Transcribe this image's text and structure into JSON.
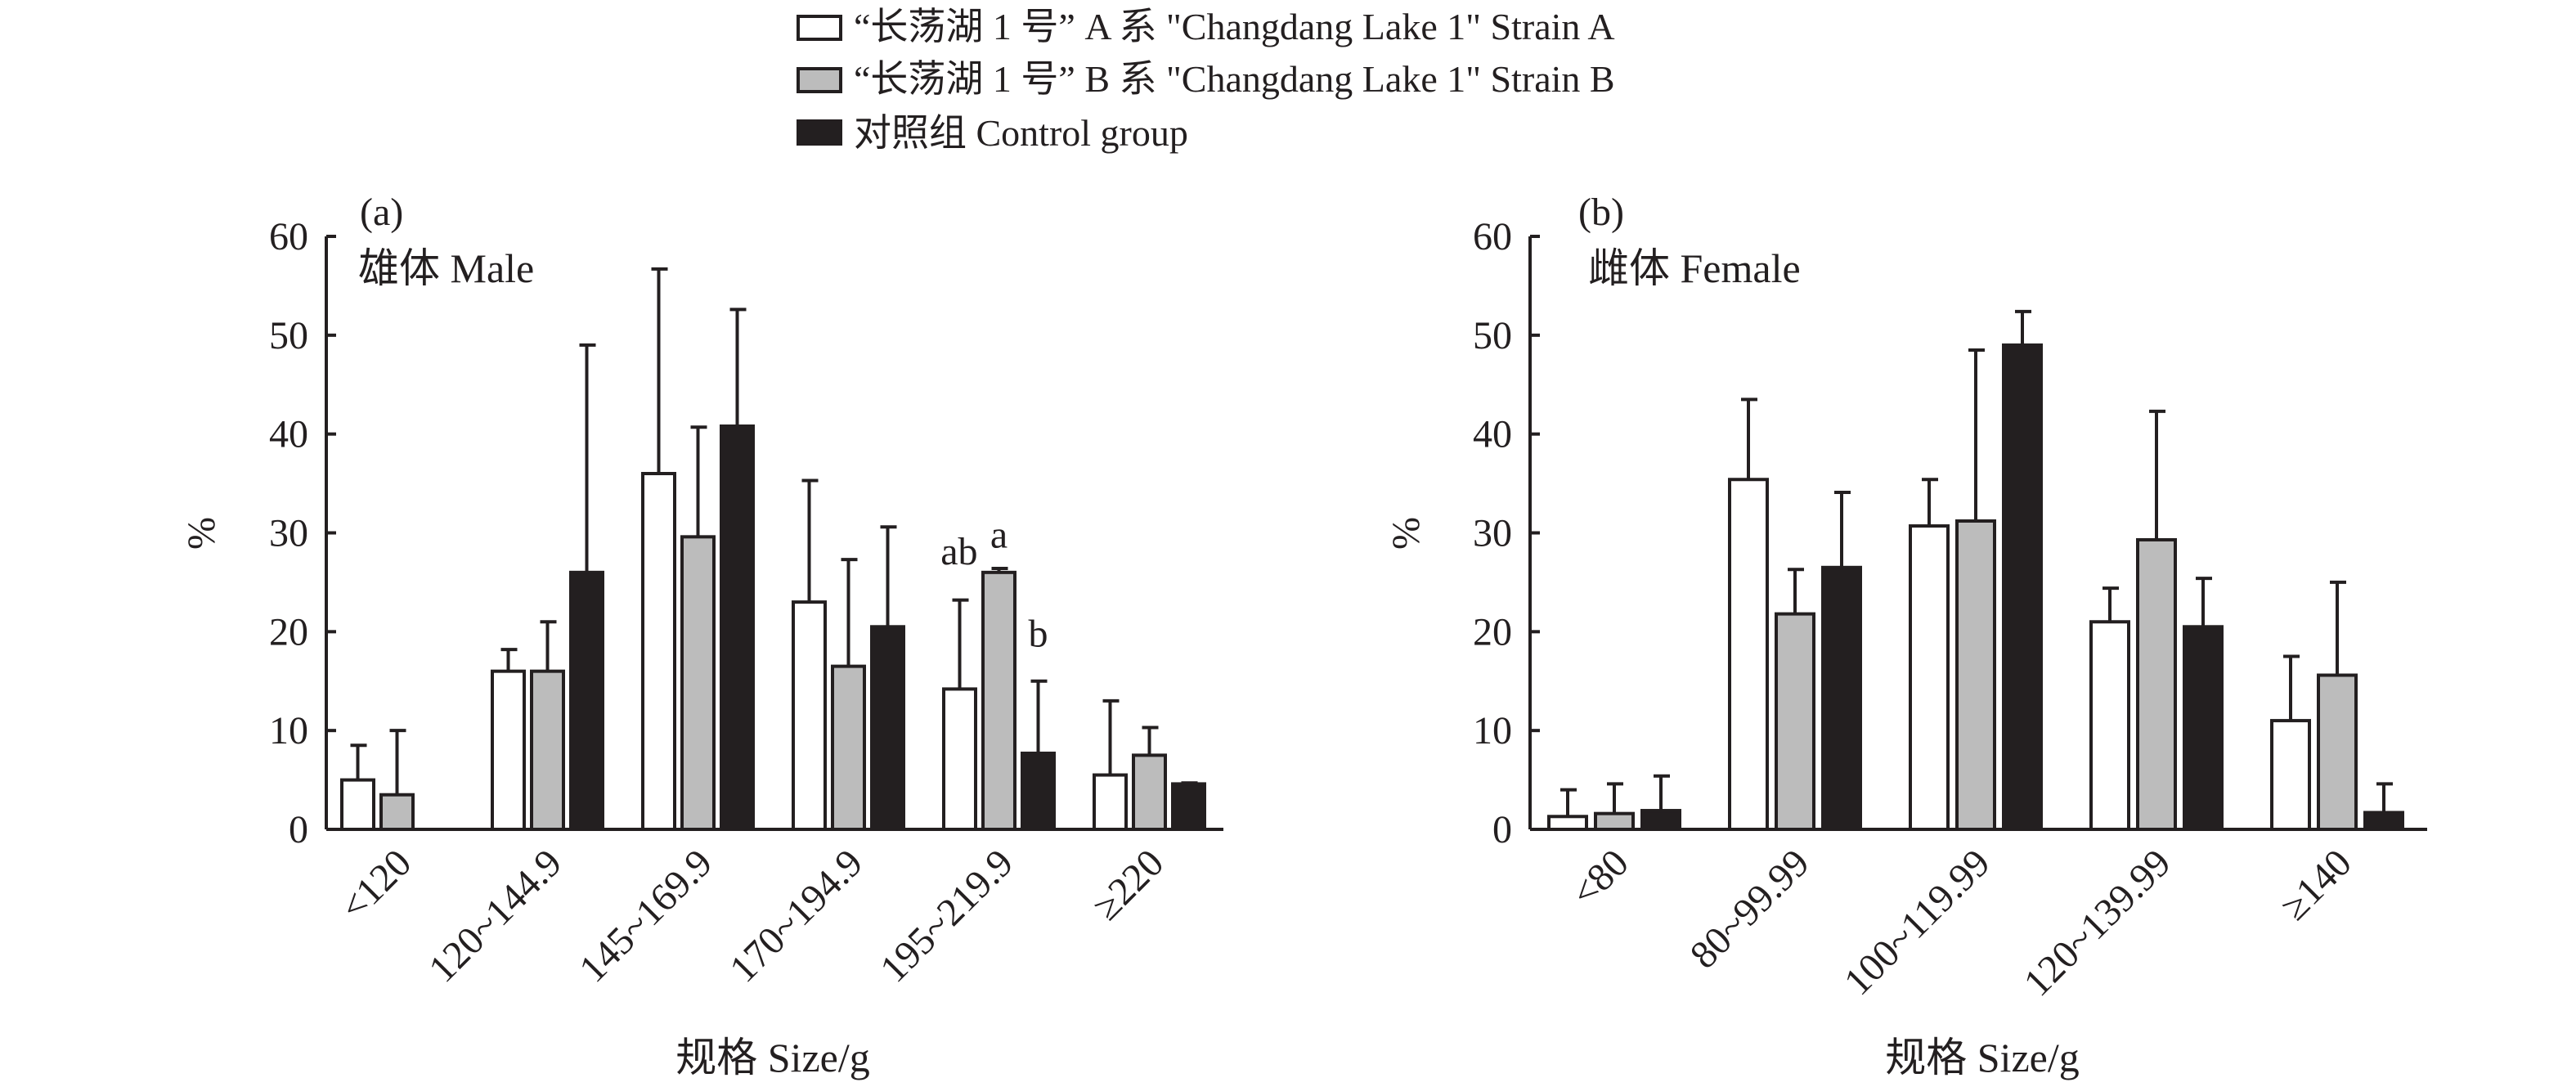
{
  "legend": {
    "items": [
      {
        "label": "“长荡湖 1 号” A 系 \"Changdang Lake 1\" Strain A",
        "color": "#ffffff"
      },
      {
        "label": "“长荡湖 1 号” B 系 \"Changdang Lake 1\" Strain B",
        "color": "#bcbcbc"
      },
      {
        "label": "对照组 Control group",
        "color": "#231f20"
      }
    ]
  },
  "chart_data": [
    {
      "type": "bar",
      "panel": "(a)",
      "title": "雄体 Male",
      "xlabel": "规格 Size/g",
      "ylabel": "%",
      "ylim": [
        0,
        60
      ],
      "yticks": [
        "0",
        "10",
        "20",
        "30",
        "40",
        "50",
        "60"
      ],
      "categories": [
        "<120",
        "120~144.9",
        "145~169.9",
        "170~194.9",
        "195~219.9",
        "≥220"
      ],
      "series": [
        {
          "name": "“长荡湖 1 号” A 系 \"Changdang Lake 1\" Strain A",
          "values": [
            5,
            16,
            36,
            23,
            14.2,
            5.5
          ],
          "error_upper": [
            8.5,
            18.2,
            56.7,
            35.3,
            23.2,
            13
          ]
        },
        {
          "name": "“长荡湖 1 号” B 系 \"Changdang Lake 1\" Strain B",
          "values": [
            3.5,
            16,
            29.6,
            16.5,
            26,
            7.5
          ],
          "error_upper": [
            10,
            21,
            40.7,
            27.3,
            26.4,
            10.3
          ]
        },
        {
          "name": "对照组 Control group",
          "values": [
            0,
            26,
            40.8,
            20.5,
            7.7,
            4.6
          ],
          "error_upper": [
            0,
            49,
            52.6,
            30.6,
            15,
            4.7
          ]
        }
      ],
      "annotations": [
        {
          "category": "195~219.9",
          "series": 0,
          "text": "ab"
        },
        {
          "category": "195~219.9",
          "series": 1,
          "text": "a"
        },
        {
          "category": "195~219.9",
          "series": 2,
          "text": "b"
        }
      ]
    },
    {
      "type": "bar",
      "panel": "(b)",
      "title": "雌体 Female",
      "xlabel": "规格 Size/g",
      "ylabel": "%",
      "ylim": [
        0,
        60
      ],
      "yticks": [
        "0",
        "10",
        "20",
        "30",
        "40",
        "50",
        "60"
      ],
      "categories": [
        "<80",
        "80~99.99",
        "100~119.99",
        "120~139.99",
        "≥140"
      ],
      "series": [
        {
          "name": "“长荡湖 1 号” A 系 \"Changdang Lake 1\" Strain A",
          "values": [
            1.3,
            35.4,
            30.7,
            21,
            11
          ],
          "error_upper": [
            4,
            43.5,
            35.4,
            24.4,
            17.5
          ]
        },
        {
          "name": "“长荡湖 1 号” B 系 \"Changdang Lake 1\" Strain B",
          "values": [
            1.6,
            21.8,
            31.2,
            29.3,
            15.6
          ],
          "error_upper": [
            4.6,
            26.3,
            48.5,
            42.3,
            25
          ]
        },
        {
          "name": "对照组 Control group",
          "values": [
            1.9,
            26.5,
            49,
            20.5,
            1.7
          ],
          "error_upper": [
            5.4,
            34.1,
            52.4,
            25.4,
            4.6
          ]
        }
      ],
      "annotations": []
    }
  ]
}
